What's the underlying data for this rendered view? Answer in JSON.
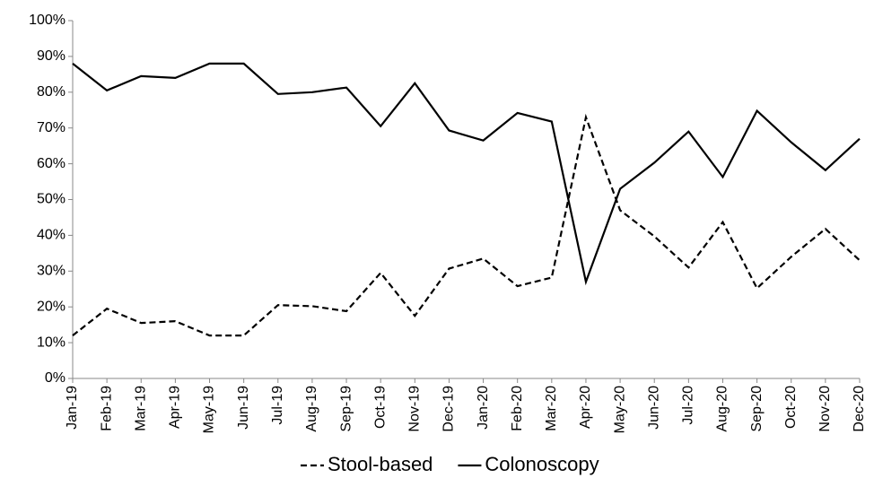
{
  "chart_data": {
    "type": "line",
    "categories": [
      "Jan-19",
      "Feb-19",
      "Mar-19",
      "Apr-19",
      "May-19",
      "Jun-19",
      "Jul-19",
      "Aug-19",
      "Sep-19",
      "Oct-19",
      "Nov-19",
      "Dec-19",
      "Jan-20",
      "Feb-20",
      "Mar-20",
      "Apr-20",
      "May-20",
      "Jun-20",
      "Jul-20",
      "Aug-20",
      "Sep-20",
      "Oct-20",
      "Nov-20",
      "Dec-20"
    ],
    "series": [
      {
        "name": "Stool-based",
        "color": "#000000",
        "linestyle": "dashed",
        "values": [
          12,
          19.5,
          15.5,
          16,
          12,
          12,
          20.5,
          20.2,
          18.8,
          29.5,
          17.5,
          30.7,
          33.5,
          25.8,
          28.2,
          73,
          47,
          39.7,
          31,
          43.7,
          25.2,
          34,
          41.8,
          33
        ]
      },
      {
        "name": "Colonoscopy",
        "color": "#000000",
        "linestyle": "solid",
        "values": [
          88,
          80.5,
          84.5,
          84,
          88,
          88,
          79.5,
          80,
          81.3,
          70.5,
          82.5,
          69.3,
          66.5,
          74.2,
          71.8,
          27,
          53,
          60.3,
          69,
          56.3,
          74.8,
          66,
          58.2,
          67
        ]
      }
    ],
    "ylim": [
      0,
      100
    ],
    "yticks": [
      {
        "value": 0,
        "label": "0%"
      },
      {
        "value": 10,
        "label": "10%"
      },
      {
        "value": 20,
        "label": "20%"
      },
      {
        "value": 30,
        "label": "30%"
      },
      {
        "value": 40,
        "label": "40%"
      },
      {
        "value": 50,
        "label": "50%"
      },
      {
        "value": 60,
        "label": "60%"
      },
      {
        "value": 70,
        "label": "70%"
      },
      {
        "value": 80,
        "label": "80%"
      },
      {
        "value": 90,
        "label": "90%"
      },
      {
        "value": 100,
        "label": "100%"
      }
    ],
    "grid": false,
    "legend": "bottom"
  }
}
